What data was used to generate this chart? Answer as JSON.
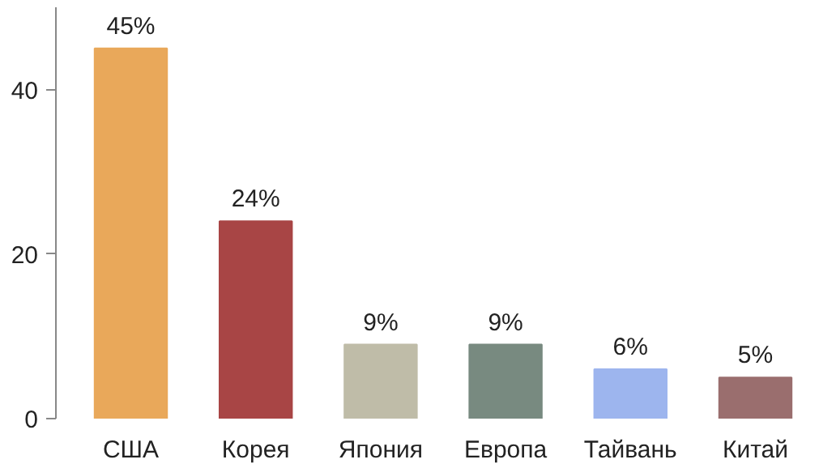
{
  "chart_data": {
    "type": "bar",
    "categories": [
      "США",
      "Корея",
      "Япония",
      "Европа",
      "Тайвань",
      "Китай"
    ],
    "values": [
      45,
      24,
      9,
      9,
      6,
      5
    ],
    "colors": [
      "#e9a85a",
      "#a84545",
      "#bfbca8",
      "#788a80",
      "#9db5ee",
      "#9a6e6e"
    ],
    "value_labels": [
      "45%",
      "24%",
      "9%",
      "9%",
      "6%",
      "5%"
    ],
    "ylim": [
      0,
      50
    ],
    "yticks": [
      0,
      20,
      40
    ],
    "grid": false
  }
}
